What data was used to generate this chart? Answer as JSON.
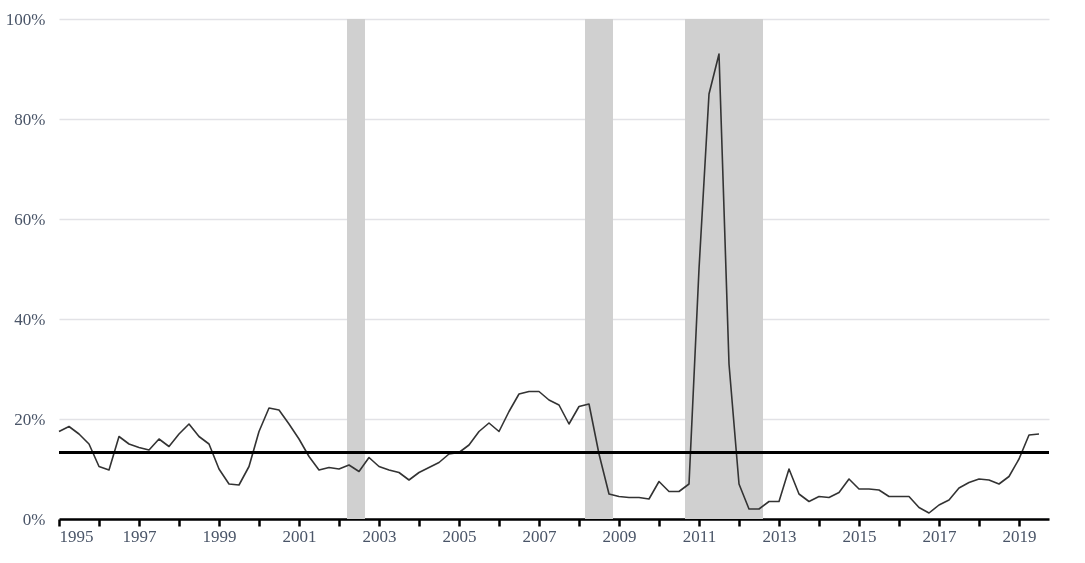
{
  "chart_data": {
    "type": "line",
    "x": [
      1995,
      1995.25,
      1995.5,
      1995.75,
      1996,
      1996.25,
      1996.5,
      1996.75,
      1997,
      1997.25,
      1997.5,
      1997.75,
      1998,
      1998.25,
      1998.5,
      1998.75,
      1999,
      1999.25,
      1999.5,
      1999.75,
      2000,
      2000.25,
      2000.5,
      2000.75,
      2001,
      2001.25,
      2001.5,
      2001.75,
      2002,
      2002.25,
      2002.5,
      2002.75,
      2003,
      2003.25,
      2003.5,
      2003.75,
      2004,
      2004.25,
      2004.5,
      2004.75,
      2005,
      2005.25,
      2005.5,
      2005.75,
      2006,
      2006.25,
      2006.5,
      2006.75,
      2007,
      2007.25,
      2007.5,
      2007.75,
      2008,
      2008.25,
      2008.5,
      2008.75,
      2009,
      2009.25,
      2009.5,
      2009.75,
      2010,
      2010.25,
      2010.5,
      2010.75,
      2011,
      2011.25,
      2011.5,
      2011.75,
      2012,
      2012.25,
      2012.5,
      2012.75,
      2013,
      2013.25,
      2013.5,
      2013.75,
      2014,
      2014.25,
      2014.5,
      2014.75,
      2015,
      2015.25,
      2015.5,
      2015.75,
      2016,
      2016.25,
      2016.5,
      2016.75,
      2017,
      2017.25,
      2017.5,
      2017.75,
      2018,
      2018.25,
      2018.5,
      2018.75,
      2019,
      2019.25,
      2019.5
    ],
    "series": [
      {
        "color": "#333333",
        "values": [
          17.5,
          18.5,
          17,
          15,
          10.5,
          9.8,
          16.5,
          15,
          14.3,
          13.8,
          16,
          14.5,
          17,
          19,
          16.5,
          15,
          10,
          7,
          6.8,
          10.5,
          17.5,
          22.2,
          21.8,
          19,
          16,
          12.5,
          9.8,
          10.3,
          10,
          10.8,
          9.5,
          12.3,
          10.5,
          9.8,
          9.3,
          7.8,
          9.3,
          10.3,
          11.3,
          13,
          13.3,
          14.8,
          17.5,
          19.2,
          17.5,
          21.5,
          25,
          25.5,
          25.5,
          23.8,
          22.8,
          19,
          22.5,
          23,
          13,
          5,
          4.5,
          4.3,
          4.3,
          4,
          7.5,
          5.5,
          5.5,
          7,
          50,
          85,
          93,
          31,
          7,
          2,
          2,
          3.5,
          3.5,
          10,
          5,
          3.5,
          4.5,
          4.3,
          5.3,
          8,
          6,
          6,
          5.8,
          4.5,
          4.5,
          4.5,
          2.3,
          1.2,
          2.8,
          3.8,
          6.2,
          7.3,
          8,
          7.8,
          7,
          8.5,
          12,
          16.8,
          17
        ]
      }
    ],
    "xlim": [
      1995,
      2019.75
    ],
    "xticks": [
      1995,
      {
        "value": 1996,
        "label": null
      },
      1997,
      {
        "value": 1998,
        "label": null
      },
      1999,
      {
        "value": 2000,
        "label": null
      },
      2001,
      {
        "value": 2002,
        "label": null
      },
      2003,
      {
        "value": 2004,
        "label": null
      },
      2005,
      {
        "value": 2006,
        "label": null
      },
      2007,
      {
        "value": 2008,
        "label": null
      },
      2009,
      {
        "value": 2010,
        "label": null
      },
      2011,
      {
        "value": 2012,
        "label": null
      },
      2013,
      {
        "value": 2014,
        "label": null
      },
      2015,
      {
        "value": 2016,
        "label": null
      },
      2017,
      {
        "value": 2018,
        "label": null
      },
      2019
    ],
    "ylim": [
      0,
      100
    ],
    "yticks": [
      {
        "value": 0,
        "label": "0%"
      },
      {
        "value": 20,
        "label": "20%"
      },
      {
        "value": 40,
        "label": "40%"
      },
      {
        "value": 60,
        "label": "60%"
      },
      {
        "value": 80,
        "label": "80%"
      },
      {
        "value": 100,
        "label": "100%"
      }
    ],
    "grid": "y",
    "marker": "none",
    "line_style": "solid",
    "ref_lines": [
      {
        "axis": "y",
        "value": 13.3,
        "color": "#000000",
        "line_style": "solid"
      }
    ],
    "bands": [
      {
        "axis": "x",
        "from": 2002.2,
        "to": 2002.65,
        "color": "#d0d0d0"
      },
      {
        "axis": "x",
        "from": 2008.15,
        "to": 2008.85,
        "color": "#d0d0d0"
      },
      {
        "axis": "x",
        "from": 2010.65,
        "to": 2012.6,
        "color": "#d0d0d0"
      }
    ]
  }
}
